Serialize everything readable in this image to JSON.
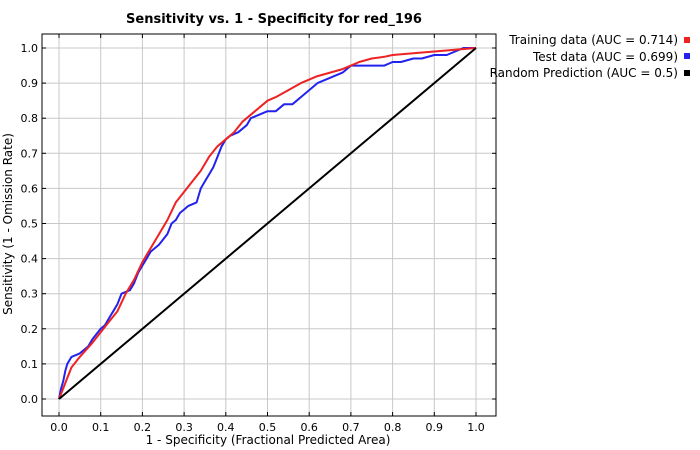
{
  "chart_data": {
    "type": "line",
    "title": "Sensitivity vs. 1 - Specificity for red_196",
    "xlabel": "1 - Specificity  (Fractional Predicted Area)",
    "ylabel": "Sensitivity  (1 - Omission Rate)",
    "xlim": [
      0,
      1
    ],
    "ylim": [
      0,
      1
    ],
    "xticks": [
      "0.0",
      "0.1",
      "0.2",
      "0.3",
      "0.4",
      "0.5",
      "0.6",
      "0.7",
      "0.8",
      "0.9",
      "1.0"
    ],
    "yticks": [
      "0.0",
      "0.1",
      "0.2",
      "0.3",
      "0.4",
      "0.5",
      "0.6",
      "0.7",
      "0.8",
      "0.9",
      "1.0"
    ],
    "grid": true,
    "legend_position": "outside-top-right",
    "series": [
      {
        "name": "Training data (AUC = 0.714)",
        "color": "#ee2222",
        "x": [
          0,
          0.01,
          0.02,
          0.03,
          0.05,
          0.08,
          0.1,
          0.12,
          0.14,
          0.16,
          0.18,
          0.2,
          0.22,
          0.24,
          0.26,
          0.28,
          0.3,
          0.32,
          0.34,
          0.36,
          0.38,
          0.4,
          0.42,
          0.44,
          0.46,
          0.48,
          0.5,
          0.52,
          0.55,
          0.58,
          0.6,
          0.62,
          0.65,
          0.68,
          0.7,
          0.72,
          0.75,
          0.78,
          0.8,
          0.85,
          0.9,
          0.95,
          1.0
        ],
        "y": [
          0,
          0.03,
          0.06,
          0.09,
          0.12,
          0.16,
          0.19,
          0.22,
          0.25,
          0.3,
          0.34,
          0.39,
          0.43,
          0.47,
          0.51,
          0.56,
          0.59,
          0.62,
          0.65,
          0.69,
          0.72,
          0.74,
          0.76,
          0.79,
          0.81,
          0.83,
          0.85,
          0.86,
          0.88,
          0.9,
          0.91,
          0.92,
          0.93,
          0.94,
          0.95,
          0.96,
          0.97,
          0.975,
          0.98,
          0.985,
          0.99,
          0.995,
          1.0
        ]
      },
      {
        "name": "Test data (AUC = 0.699)",
        "color": "#2222ee",
        "x": [
          0,
          0.005,
          0.01,
          0.015,
          0.02,
          0.03,
          0.05,
          0.06,
          0.07,
          0.08,
          0.1,
          0.11,
          0.12,
          0.13,
          0.14,
          0.15,
          0.17,
          0.18,
          0.19,
          0.2,
          0.21,
          0.22,
          0.24,
          0.26,
          0.27,
          0.28,
          0.29,
          0.3,
          0.31,
          0.33,
          0.34,
          0.35,
          0.36,
          0.37,
          0.38,
          0.39,
          0.4,
          0.41,
          0.43,
          0.45,
          0.46,
          0.48,
          0.5,
          0.52,
          0.54,
          0.56,
          0.58,
          0.6,
          0.62,
          0.64,
          0.66,
          0.68,
          0.7,
          0.72,
          0.75,
          0.78,
          0.8,
          0.82,
          0.85,
          0.87,
          0.9,
          0.93,
          0.95,
          0.97,
          1.0
        ],
        "y": [
          0,
          0.03,
          0.05,
          0.08,
          0.1,
          0.12,
          0.13,
          0.14,
          0.15,
          0.17,
          0.2,
          0.21,
          0.23,
          0.25,
          0.27,
          0.3,
          0.31,
          0.33,
          0.36,
          0.38,
          0.4,
          0.42,
          0.44,
          0.47,
          0.5,
          0.51,
          0.53,
          0.54,
          0.55,
          0.56,
          0.6,
          0.62,
          0.64,
          0.66,
          0.69,
          0.72,
          0.74,
          0.75,
          0.76,
          0.78,
          0.8,
          0.81,
          0.82,
          0.82,
          0.84,
          0.84,
          0.86,
          0.88,
          0.9,
          0.91,
          0.92,
          0.93,
          0.95,
          0.95,
          0.95,
          0.95,
          0.96,
          0.96,
          0.97,
          0.97,
          0.98,
          0.98,
          0.99,
          1.0,
          1.0
        ]
      },
      {
        "name": "Random Prediction (AUC = 0.5)",
        "color": "#000000",
        "x": [
          0,
          1
        ],
        "y": [
          0,
          1
        ]
      }
    ]
  }
}
